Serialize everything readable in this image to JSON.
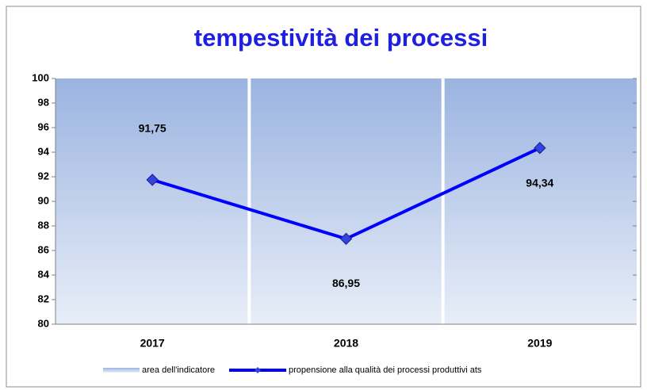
{
  "chart_data": {
    "type": "combo",
    "title": "tempestività dei processi",
    "categories": [
      "2017",
      "2018",
      "2019"
    ],
    "series": [
      {
        "name": "area dell'indicatore",
        "type": "bar",
        "color": "#9ab3e0",
        "values": [
          100,
          100,
          100
        ]
      },
      {
        "name": "propensione alla qualità dei processi produttivi ats",
        "type": "line",
        "color": "#0000ff",
        "values": [
          91.75,
          86.95,
          94.34
        ],
        "value_labels": [
          "91,75",
          "86,95",
          "94,34"
        ]
      }
    ],
    "ylim": [
      80,
      100
    ],
    "yticks": [
      80,
      82,
      84,
      86,
      88,
      90,
      92,
      94,
      96,
      98,
      100
    ],
    "grid": false,
    "legend": "bottom"
  }
}
